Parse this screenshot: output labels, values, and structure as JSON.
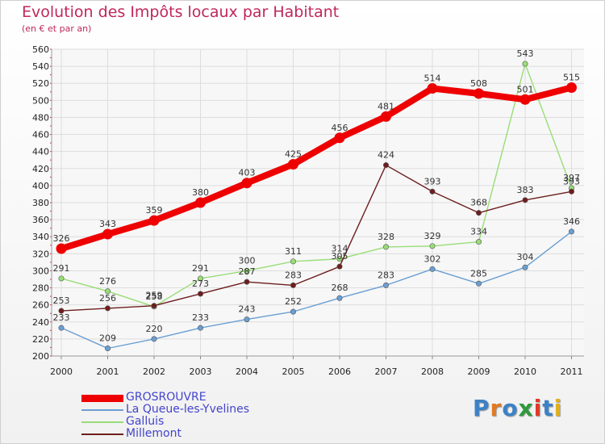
{
  "header": {
    "title": "Evolution des Impôts locaux par Habitant",
    "subtitle": "(en € et par an)"
  },
  "logo": {
    "letters": [
      "P",
      "r",
      "o",
      "x",
      "i",
      "t",
      "i"
    ],
    "colors": [
      "#3d82c6",
      "#e07a22",
      "#3d82c6",
      "#2e9a3a",
      "#e03a2a",
      "#3d82c6",
      "#e0b020"
    ]
  },
  "chart_data": {
    "type": "line",
    "x": [
      "2000",
      "2001",
      "2002",
      "2003",
      "2004",
      "2005",
      "2006",
      "2007",
      "2008",
      "2009",
      "2010",
      "2011"
    ],
    "ylim": [
      200,
      560
    ],
    "yticks": [
      200,
      220,
      240,
      260,
      280,
      300,
      320,
      340,
      360,
      380,
      400,
      420,
      440,
      460,
      480,
      500,
      520,
      540,
      560
    ],
    "grid": true,
    "legend_position": "bottom-left",
    "series": [
      {
        "name": "GROSROUVRE",
        "color": "#ee0000",
        "values": [
          326,
          343,
          359,
          380,
          403,
          425,
          456,
          481,
          514,
          508,
          501,
          515
        ]
      },
      {
        "name": "La Queue-les-Yvelines",
        "color": "#6a9fd3",
        "values": [
          233,
          209,
          220,
          233,
          243,
          252,
          268,
          283,
          302,
          285,
          304,
          346
        ]
      },
      {
        "name": "Galluis",
        "color": "#99dd77",
        "values": [
          291,
          276,
          258,
          291,
          300,
          311,
          314,
          328,
          329,
          334,
          543,
          397
        ]
      },
      {
        "name": "Millemont",
        "color": "#6e1e1e",
        "values": [
          253,
          256,
          259,
          273,
          287,
          283,
          305,
          424,
          393,
          368,
          383,
          393
        ]
      }
    ]
  }
}
